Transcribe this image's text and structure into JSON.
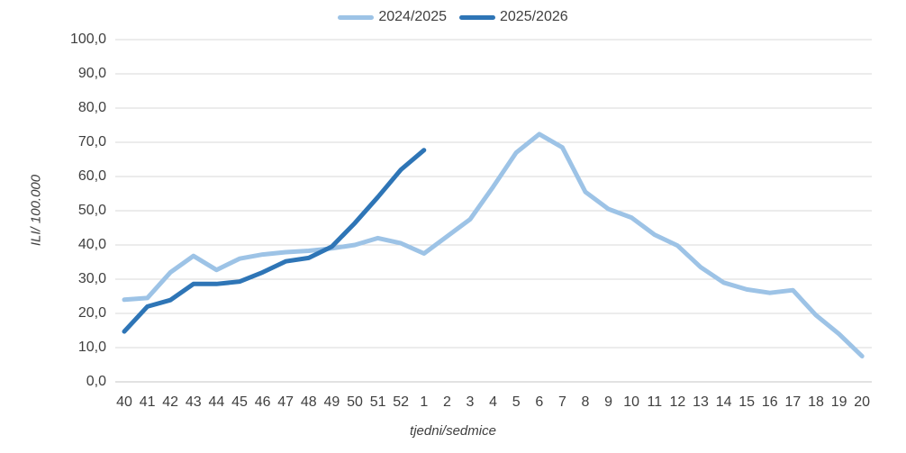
{
  "legend": {
    "items": [
      {
        "label": "2024/2025",
        "color": "#9DC3E6"
      },
      {
        "label": "2025/2026",
        "color": "#2E75B6"
      }
    ]
  },
  "yaxis": {
    "title": "ILI/ 100.000",
    "tick_labels": [
      "0,0",
      "10,0",
      "20,0",
      "30,0",
      "40,0",
      "50,0",
      "60,0",
      "70,0",
      "80,0",
      "90,0",
      "100,0"
    ]
  },
  "xaxis": {
    "title": "tjedni/sedmice"
  },
  "chart_data": {
    "type": "line",
    "title": "",
    "xlabel": "tjedni/sedmice",
    "ylabel": "ILI/ 100.000",
    "ylim": [
      0,
      100
    ],
    "ytick_step": 10,
    "grid": "horizontal",
    "grid_color": "#D9D9D9",
    "text_color": "#3f3f3f",
    "legend_position": "top-center",
    "categories": [
      "40",
      "41",
      "42",
      "43",
      "44",
      "45",
      "46",
      "47",
      "48",
      "49",
      "50",
      "51",
      "52",
      "1",
      "2",
      "3",
      "4",
      "5",
      "6",
      "7",
      "8",
      "9",
      "10",
      "11",
      "12",
      "13",
      "14",
      "15",
      "16",
      "17",
      "18",
      "19",
      "20"
    ],
    "series": [
      {
        "name": "2024/2025",
        "color": "#9DC3E6",
        "values": [
          24.0,
          24.5,
          32.0,
          36.8,
          32.7,
          36.0,
          37.2,
          37.9,
          38.3,
          39.0,
          40.0,
          42.0,
          40.5,
          37.5,
          42.5,
          47.5,
          57.0,
          67.0,
          72.4,
          68.5,
          55.5,
          50.5,
          48.0,
          43.0,
          39.8,
          33.5,
          29.0,
          27.0,
          26.0,
          26.8,
          19.5,
          14.0,
          7.5
        ]
      },
      {
        "name": "2025/2026",
        "color": "#2E75B6",
        "values": [
          14.7,
          22.0,
          23.9,
          28.6,
          28.6,
          29.3,
          32.0,
          35.2,
          36.2,
          39.5,
          46.4,
          54.0,
          62.0,
          67.7,
          null,
          null,
          null,
          null,
          null,
          null,
          null,
          null,
          null,
          null,
          null,
          null,
          null,
          null,
          null,
          null,
          null,
          null,
          null
        ]
      }
    ]
  }
}
